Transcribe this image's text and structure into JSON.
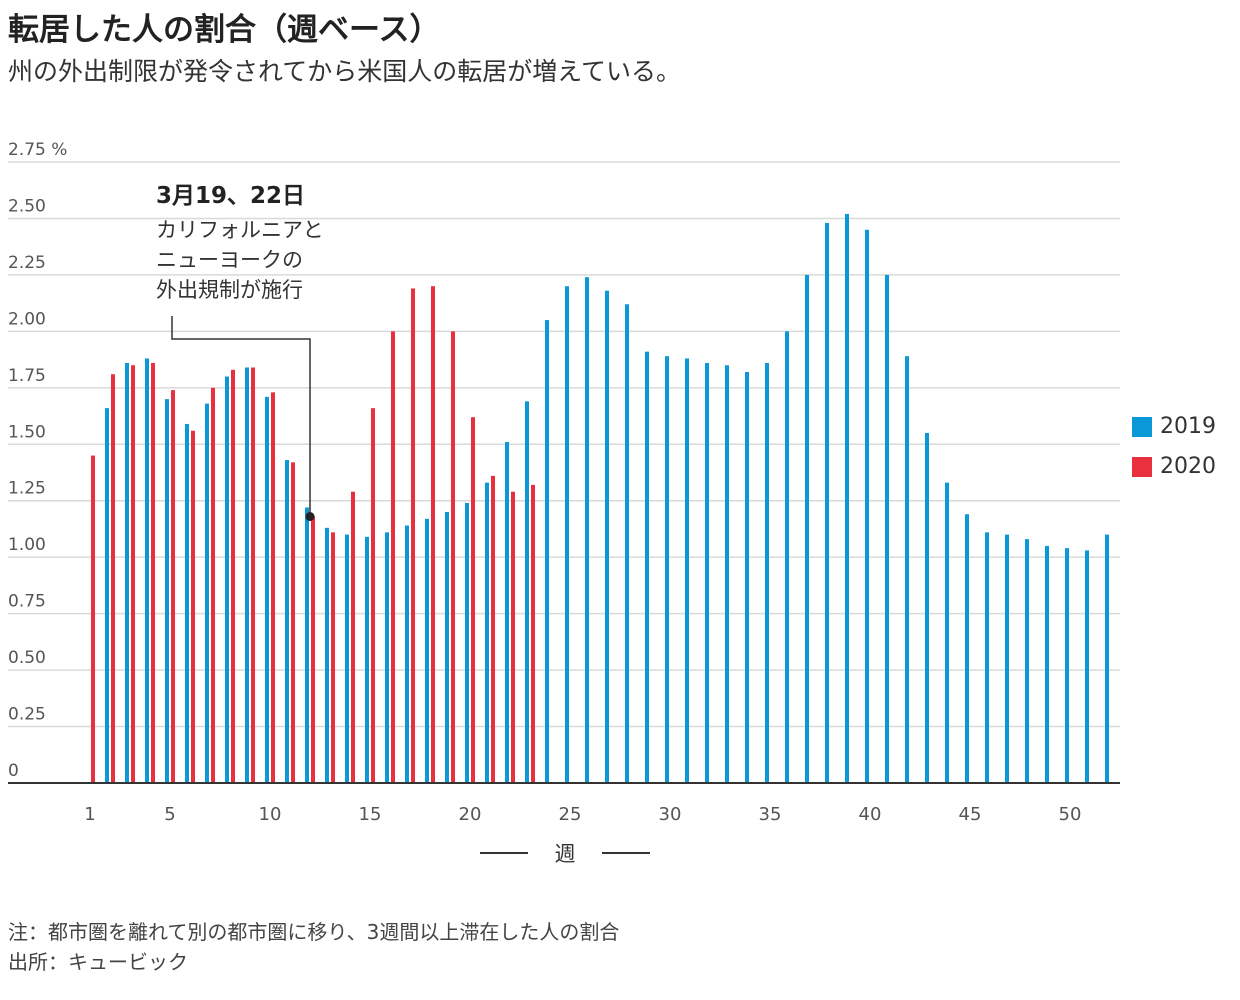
{
  "title": "転居した人の割合（週ベース）",
  "subtitle": "州の外出制限が発令されてから米国人の転居が増えている。",
  "note": "注：都市圏を離れて別の都市圏に移り、3週間以上滞在した人の割合",
  "source": "出所：キュービック",
  "colors": {
    "s2019": "#0a98d8",
    "s2020": "#e8303f",
    "grid": "#d9d9d9",
    "axis": "#333333"
  },
  "chart_data": {
    "type": "bar",
    "xlabel": "週",
    "ylim": [
      0,
      2.75
    ],
    "yticks": [
      0,
      0.25,
      0.5,
      0.75,
      1.0,
      1.25,
      1.5,
      1.75,
      2.0,
      2.25,
      2.5,
      2.75
    ],
    "ytick_labels": [
      "0",
      "0.25",
      "0.50",
      "0.75",
      "1.00",
      "1.25",
      "1.50",
      "1.75",
      "2.00",
      "2.25",
      "2.50",
      "2.75 %"
    ],
    "xticks": [
      1,
      5,
      10,
      15,
      20,
      25,
      30,
      35,
      40,
      45,
      50
    ],
    "legend_position": "right",
    "series": [
      {
        "name": "2019",
        "x_start": 1,
        "values": [
          null,
          1.66,
          1.86,
          1.88,
          1.7,
          1.59,
          1.68,
          1.8,
          1.84,
          1.71,
          1.43,
          1.22,
          1.13,
          1.1,
          1.09,
          1.11,
          1.14,
          1.17,
          1.2,
          1.24,
          1.33,
          1.51,
          1.69,
          2.05,
          2.2,
          2.24,
          2.18,
          2.12,
          1.91,
          1.89,
          1.88,
          1.86,
          1.85,
          1.82,
          1.86,
          2.0,
          2.25,
          2.48,
          2.52,
          2.45,
          2.25,
          1.89,
          1.55,
          1.33,
          1.19,
          1.11,
          1.1,
          1.08,
          1.05,
          1.04,
          1.03,
          1.1
        ]
      },
      {
        "name": "2020",
        "x_start": 1,
        "values": [
          1.45,
          1.81,
          1.85,
          1.86,
          1.74,
          1.56,
          1.75,
          1.83,
          1.84,
          1.73,
          1.42,
          1.18,
          1.11,
          1.29,
          1.66,
          2.0,
          2.19,
          2.2,
          2.0,
          1.62,
          1.36,
          1.29,
          1.32
        ]
      }
    ],
    "annotation": {
      "title": "3月19、22日",
      "lines": [
        "カリフォルニアと",
        "ニューヨークの",
        "外出規制が施行"
      ],
      "week": 12,
      "value": 1.18
    }
  }
}
